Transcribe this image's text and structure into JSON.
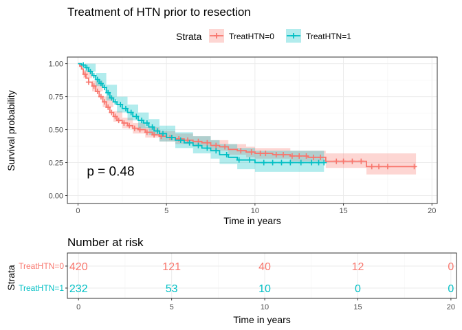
{
  "chart_data": [
    {
      "type": "line",
      "subtype": "kaplan-meier",
      "title": "Treatment of HTN prior to resection",
      "xlabel": "Time in years",
      "ylabel": "Survival probability",
      "xlim": [
        -0.6,
        20.3
      ],
      "ylim": [
        -0.06,
        1.05
      ],
      "xticks": [
        0,
        5,
        10,
        15,
        20
      ],
      "yticks": [
        0.0,
        0.25,
        0.5,
        0.75,
        1.0
      ],
      "ytick_labels": [
        "0.00",
        "0.25",
        "0.50",
        "0.75",
        "1.00"
      ],
      "grid": true,
      "legend_position": "top",
      "legend_title": "Strata",
      "annotation": "p = 0.48",
      "series": [
        {
          "name": "TreatHTN=0",
          "color": "#F8766D",
          "steps": [
            [
              0,
              1.0
            ],
            [
              0.1,
              0.98
            ],
            [
              0.2,
              0.96
            ],
            [
              0.3,
              0.92
            ],
            [
              0.45,
              0.89
            ],
            [
              0.6,
              0.86
            ],
            [
              0.8,
              0.83
            ],
            [
              1.0,
              0.79
            ],
            [
              1.2,
              0.75
            ],
            [
              1.4,
              0.71
            ],
            [
              1.6,
              0.67
            ],
            [
              1.8,
              0.63
            ],
            [
              2.0,
              0.6
            ],
            [
              2.2,
              0.57
            ],
            [
              2.5,
              0.55
            ],
            [
              2.8,
              0.53
            ],
            [
              3.1,
              0.51
            ],
            [
              3.4,
              0.5
            ],
            [
              3.8,
              0.48
            ],
            [
              4.2,
              0.46
            ],
            [
              4.6,
              0.45
            ],
            [
              5.0,
              0.44
            ],
            [
              5.5,
              0.43
            ],
            [
              6.0,
              0.42
            ],
            [
              6.5,
              0.41
            ],
            [
              7.0,
              0.4
            ],
            [
              7.5,
              0.38
            ],
            [
              8.0,
              0.37
            ],
            [
              8.5,
              0.35
            ],
            [
              9.0,
              0.34
            ],
            [
              9.5,
              0.33
            ],
            [
              10.0,
              0.32
            ],
            [
              11.0,
              0.31
            ],
            [
              12.0,
              0.3
            ],
            [
              13.0,
              0.29
            ],
            [
              14.0,
              0.26
            ],
            [
              16.3,
              0.22
            ],
            [
              19.1,
              0.22
            ]
          ],
          "lower": [
            [
              0,
              1.0
            ],
            [
              0.3,
              0.89
            ],
            [
              0.8,
              0.79
            ],
            [
              1.4,
              0.67
            ],
            [
              2.0,
              0.56
            ],
            [
              2.5,
              0.51
            ],
            [
              3.1,
              0.47
            ],
            [
              3.8,
              0.44
            ],
            [
              4.6,
              0.41
            ],
            [
              5.5,
              0.39
            ],
            [
              6.5,
              0.37
            ],
            [
              7.5,
              0.34
            ],
            [
              8.5,
              0.31
            ],
            [
              9.5,
              0.29
            ],
            [
              10.0,
              0.28
            ],
            [
              12.0,
              0.26
            ],
            [
              14.0,
              0.21
            ],
            [
              16.3,
              0.16
            ],
            [
              19.1,
              0.16
            ]
          ],
          "upper": [
            [
              0,
              1.0
            ],
            [
              0.3,
              0.95
            ],
            [
              0.8,
              0.87
            ],
            [
              1.4,
              0.75
            ],
            [
              2.0,
              0.64
            ],
            [
              2.5,
              0.59
            ],
            [
              3.1,
              0.55
            ],
            [
              3.8,
              0.52
            ],
            [
              4.6,
              0.49
            ],
            [
              5.5,
              0.47
            ],
            [
              6.5,
              0.45
            ],
            [
              7.5,
              0.42
            ],
            [
              8.5,
              0.39
            ],
            [
              9.5,
              0.37
            ],
            [
              10.0,
              0.36
            ],
            [
              12.0,
              0.34
            ],
            [
              14.0,
              0.32
            ],
            [
              16.3,
              0.32
            ],
            [
              19.1,
              0.32
            ]
          ],
          "censor_times": [
            0.4,
            0.6,
            0.9,
            1.1,
            1.3,
            1.5,
            1.7,
            1.9,
            2.1,
            2.3,
            2.6,
            2.9,
            3.2,
            3.5,
            3.9,
            4.3,
            4.7,
            5.2,
            5.7,
            6.2,
            6.8,
            7.3,
            7.8,
            8.3,
            9.2,
            9.8,
            10.3,
            10.6,
            11.2,
            11.6,
            12.1,
            12.5,
            12.9,
            13.3,
            13.7,
            14.6,
            15.0,
            15.5,
            16.0,
            16.6,
            17.0,
            17.5,
            19.0
          ]
        },
        {
          "name": "TreatHTN=1",
          "color": "#00BFC4",
          "steps": [
            [
              0,
              1.0
            ],
            [
              0.2,
              0.99
            ],
            [
              0.4,
              0.97
            ],
            [
              0.6,
              0.94
            ],
            [
              0.8,
              0.91
            ],
            [
              1.0,
              0.88
            ],
            [
              1.2,
              0.85
            ],
            [
              1.4,
              0.82
            ],
            [
              1.6,
              0.78
            ],
            [
              1.8,
              0.74
            ],
            [
              2.0,
              0.71
            ],
            [
              2.2,
              0.69
            ],
            [
              2.5,
              0.66
            ],
            [
              2.8,
              0.63
            ],
            [
              3.1,
              0.6
            ],
            [
              3.4,
              0.57
            ],
            [
              3.7,
              0.55
            ],
            [
              4.0,
              0.52
            ],
            [
              4.3,
              0.49
            ],
            [
              4.6,
              0.47
            ],
            [
              5.0,
              0.44
            ],
            [
              5.5,
              0.42
            ],
            [
              6.0,
              0.4
            ],
            [
              6.5,
              0.38
            ],
            [
              7.0,
              0.36
            ],
            [
              7.5,
              0.34
            ],
            [
              8.0,
              0.31
            ],
            [
              8.5,
              0.29
            ],
            [
              9.0,
              0.27
            ],
            [
              9.5,
              0.27
            ],
            [
              10.0,
              0.25
            ],
            [
              13.0,
              0.25
            ],
            [
              13.9,
              0.25
            ]
          ],
          "lower": [
            [
              0,
              1.0
            ],
            [
              0.4,
              0.94
            ],
            [
              1.0,
              0.83
            ],
            [
              1.6,
              0.72
            ],
            [
              2.2,
              0.63
            ],
            [
              2.8,
              0.57
            ],
            [
              3.4,
              0.51
            ],
            [
              4.0,
              0.46
            ],
            [
              4.6,
              0.41
            ],
            [
              5.5,
              0.36
            ],
            [
              6.5,
              0.32
            ],
            [
              7.5,
              0.28
            ],
            [
              8.0,
              0.24
            ],
            [
              9.0,
              0.2
            ],
            [
              10.0,
              0.18
            ],
            [
              13.9,
              0.18
            ]
          ],
          "upper": [
            [
              0,
              1.0
            ],
            [
              0.4,
              1.0
            ],
            [
              1.0,
              0.93
            ],
            [
              1.6,
              0.84
            ],
            [
              2.2,
              0.75
            ],
            [
              2.8,
              0.69
            ],
            [
              3.4,
              0.63
            ],
            [
              4.0,
              0.58
            ],
            [
              4.6,
              0.53
            ],
            [
              5.5,
              0.48
            ],
            [
              6.5,
              0.45
            ],
            [
              7.5,
              0.42
            ],
            [
              8.0,
              0.39
            ],
            [
              9.0,
              0.36
            ],
            [
              10.0,
              0.34
            ],
            [
              13.9,
              0.34
            ]
          ],
          "censor_times": [
            0.3,
            0.5,
            0.7,
            0.9,
            1.1,
            1.3,
            1.5,
            1.7,
            1.9,
            2.1,
            2.4,
            2.7,
            3.0,
            3.3,
            3.6,
            3.9,
            4.2,
            4.5,
            4.8,
            5.3,
            5.8,
            6.3,
            6.8,
            7.3,
            7.8,
            8.4,
            9.1,
            9.7,
            10.5,
            11.0,
            11.5,
            12.0,
            12.6,
            13.2,
            13.6,
            13.9
          ]
        }
      ]
    },
    {
      "type": "table",
      "title": "Number at risk",
      "xlabel": "Time in years",
      "ylabel": "Strata",
      "xticks": [
        0,
        5,
        10,
        15,
        20
      ],
      "rows": [
        {
          "name": "TreatHTN=0",
          "color": "#F8766D",
          "values": [
            420,
            121,
            40,
            12,
            0
          ]
        },
        {
          "name": "TreatHTN=1",
          "color": "#00BFC4",
          "values": [
            232,
            53,
            10,
            0,
            0
          ]
        }
      ]
    }
  ]
}
